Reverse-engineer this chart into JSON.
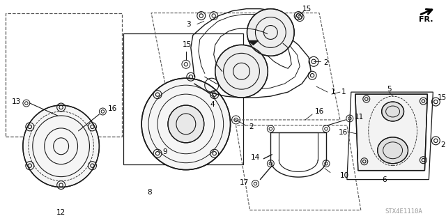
{
  "background_color": "#ffffff",
  "line_color": "#1a1a1a",
  "dashed_color": "#555555",
  "watermark": "STX4E1110A",
  "fig_width": 6.4,
  "fig_height": 3.2,
  "dpi": 100
}
